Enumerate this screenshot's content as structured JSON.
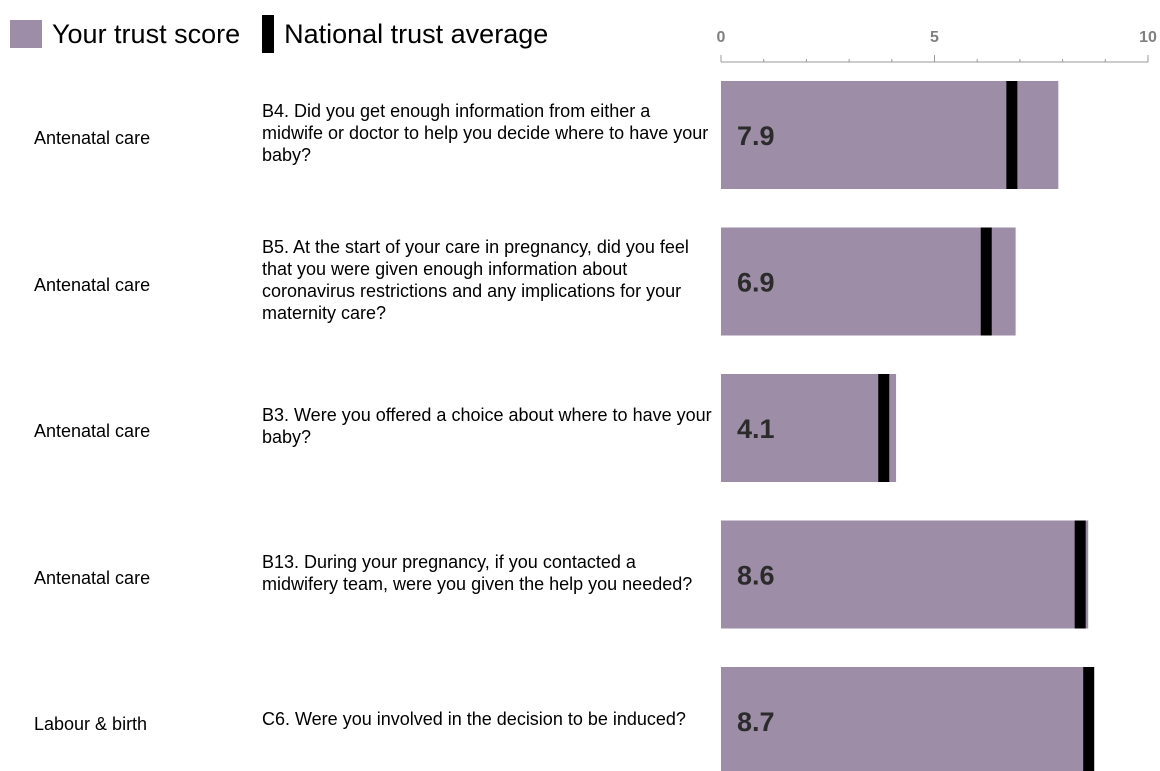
{
  "legend": {
    "trust_label": "Your trust score",
    "national_label": "National trust average",
    "trust_color": "#9e8da7",
    "national_color": "#000000"
  },
  "chart_data": {
    "type": "bar",
    "orientation": "horizontal",
    "xlim": [
      0,
      10
    ],
    "ticks": [
      "0",
      "5",
      "10"
    ],
    "grid": false,
    "legend_position": "top-left",
    "rows": [
      {
        "section": "Antenatal care",
        "question": "B4. Did you get enough information from either a midwife or doctor to help you decide where to have your baby?",
        "value": 7.9,
        "value_label": "7.9",
        "national_average": 6.8
      },
      {
        "section": "Antenatal care",
        "question": "B5. At the start of your care in pregnancy, did you feel that you were given enough information about coronavirus restrictions and any implications for your maternity care?",
        "value": 6.9,
        "value_label": "6.9",
        "national_average": 6.2
      },
      {
        "section": "Antenatal care",
        "question": "B3. Were you offered a choice about where to have your baby?",
        "value": 4.1,
        "value_label": "4.1",
        "national_average": 3.8
      },
      {
        "section": "Antenatal care",
        "question": "B13. During your pregnancy, if you contacted a midwifery team, were you given the help you needed?",
        "value": 8.6,
        "value_label": "8.6",
        "national_average": 8.4
      },
      {
        "section": "Labour & birth",
        "question": "C6. Were you involved in the decision to be induced?",
        "value": 8.7,
        "value_label": "8.7",
        "national_average": 8.6
      }
    ]
  }
}
